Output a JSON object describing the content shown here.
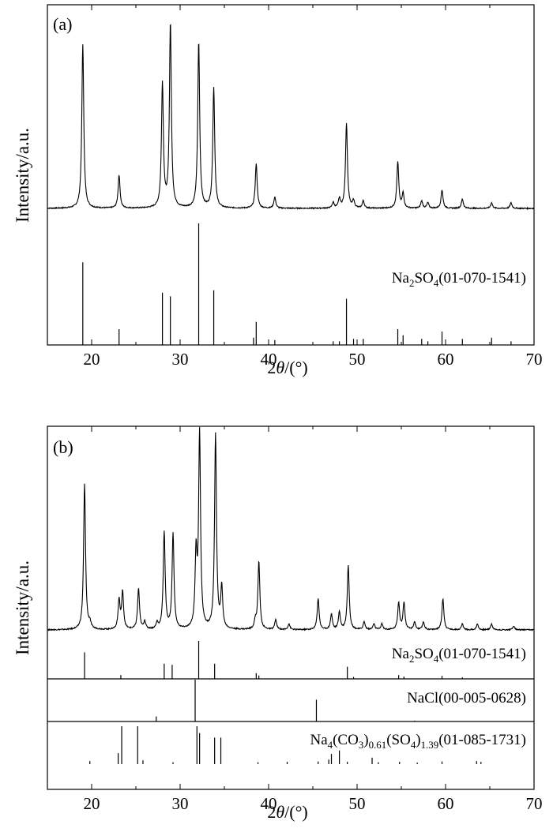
{
  "chart_data": [
    {
      "type": "line",
      "panel_label": "(a)",
      "xlabel_prefix": "2",
      "xlabel_theta": "θ",
      "xlabel_suffix": "/(°)",
      "ylabel": "Intensity/a.u.",
      "xlim": [
        15,
        70
      ],
      "x_ticks": [
        20,
        30,
        40,
        50,
        60,
        70
      ],
      "peaks": [
        {
          "x": 19.0,
          "y": 0.89
        },
        {
          "x": 23.1,
          "y": 0.18
        },
        {
          "x": 28.0,
          "y": 0.67
        },
        {
          "x": 28.9,
          "y": 1.0
        },
        {
          "x": 32.1,
          "y": 0.9
        },
        {
          "x": 33.8,
          "y": 0.65
        },
        {
          "x": 38.6,
          "y": 0.24
        },
        {
          "x": 40.7,
          "y": 0.06
        },
        {
          "x": 47.3,
          "y": 0.03
        },
        {
          "x": 48.0,
          "y": 0.05
        },
        {
          "x": 48.8,
          "y": 0.46
        },
        {
          "x": 49.6,
          "y": 0.04
        },
        {
          "x": 50.7,
          "y": 0.04
        },
        {
          "x": 54.6,
          "y": 0.25
        },
        {
          "x": 55.2,
          "y": 0.08
        },
        {
          "x": 57.3,
          "y": 0.04
        },
        {
          "x": 58.0,
          "y": 0.03
        },
        {
          "x": 59.6,
          "y": 0.1
        },
        {
          "x": 61.9,
          "y": 0.05
        },
        {
          "x": 65.2,
          "y": 0.03
        },
        {
          "x": 67.4,
          "y": 0.03
        }
      ],
      "references": [
        {
          "label_parts": [
            {
              "t": "Na"
            },
            {
              "t": "2",
              "sub": true
            },
            {
              "t": "SO"
            },
            {
              "t": "4",
              "sub": true
            },
            {
              "t": "(01-070-1541)"
            }
          ],
          "sticks": [
            {
              "x": 19.0,
              "y": 0.68
            },
            {
              "x": 23.1,
              "y": 0.13
            },
            {
              "x": 28.0,
              "y": 0.43
            },
            {
              "x": 28.9,
              "y": 0.4
            },
            {
              "x": 32.1,
              "y": 1.0
            },
            {
              "x": 33.8,
              "y": 0.45
            },
            {
              "x": 38.3,
              "y": 0.06
            },
            {
              "x": 38.6,
              "y": 0.19
            },
            {
              "x": 40.7,
              "y": 0.04
            },
            {
              "x": 47.3,
              "y": 0.03
            },
            {
              "x": 48.0,
              "y": 0.03
            },
            {
              "x": 48.8,
              "y": 0.38
            },
            {
              "x": 49.6,
              "y": 0.05
            },
            {
              "x": 50.7,
              "y": 0.05
            },
            {
              "x": 54.6,
              "y": 0.13
            },
            {
              "x": 55.2,
              "y": 0.08
            },
            {
              "x": 57.3,
              "y": 0.05
            },
            {
              "x": 58.0,
              "y": 0.03
            },
            {
              "x": 59.6,
              "y": 0.11
            },
            {
              "x": 61.9,
              "y": 0.05
            },
            {
              "x": 65.2,
              "y": 0.06
            },
            {
              "x": 67.4,
              "y": 0.03
            }
          ]
        }
      ]
    },
    {
      "type": "line",
      "panel_label": "(b)",
      "xlabel_prefix": "2",
      "xlabel_theta": "θ",
      "xlabel_suffix": "/(°)",
      "ylabel": "Intensity/a.u.",
      "xlim": [
        15,
        70
      ],
      "x_ticks": [
        20,
        30,
        40,
        50,
        60,
        70
      ],
      "peaks": [
        {
          "x": 19.2,
          "y": 0.75
        },
        {
          "x": 19.8,
          "y": 0.03
        },
        {
          "x": 23.1,
          "y": 0.15
        },
        {
          "x": 23.5,
          "y": 0.19
        },
        {
          "x": 25.3,
          "y": 0.21
        },
        {
          "x": 26.0,
          "y": 0.04
        },
        {
          "x": 27.4,
          "y": 0.03
        },
        {
          "x": 28.2,
          "y": 0.5
        },
        {
          "x": 29.2,
          "y": 0.49
        },
        {
          "x": 31.8,
          "y": 0.37
        },
        {
          "x": 32.2,
          "y": 1.0
        },
        {
          "x": 34.0,
          "y": 1.0
        },
        {
          "x": 34.7,
          "y": 0.21
        },
        {
          "x": 38.5,
          "y": 0.04
        },
        {
          "x": 38.9,
          "y": 0.35
        },
        {
          "x": 40.8,
          "y": 0.05
        },
        {
          "x": 42.3,
          "y": 0.03
        },
        {
          "x": 45.6,
          "y": 0.16
        },
        {
          "x": 47.1,
          "y": 0.08
        },
        {
          "x": 48.0,
          "y": 0.09
        },
        {
          "x": 49.0,
          "y": 0.33
        },
        {
          "x": 50.8,
          "y": 0.04
        },
        {
          "x": 51.9,
          "y": 0.03
        },
        {
          "x": 52.8,
          "y": 0.03
        },
        {
          "x": 54.7,
          "y": 0.14
        },
        {
          "x": 55.3,
          "y": 0.14
        },
        {
          "x": 56.5,
          "y": 0.04
        },
        {
          "x": 57.5,
          "y": 0.04
        },
        {
          "x": 59.7,
          "y": 0.16
        },
        {
          "x": 61.9,
          "y": 0.03
        },
        {
          "x": 63.6,
          "y": 0.03
        },
        {
          "x": 65.2,
          "y": 0.03
        },
        {
          "x": 67.7,
          "y": 0.02
        }
      ],
      "references": [
        {
          "label_parts": [
            {
              "t": "Na"
            },
            {
              "t": "2",
              "sub": true
            },
            {
              "t": "SO"
            },
            {
              "t": "4",
              "sub": true
            },
            {
              "t": "(01-070-1541)"
            }
          ],
          "sticks": [
            {
              "x": 19.2,
              "y": 0.7
            },
            {
              "x": 23.3,
              "y": 0.1
            },
            {
              "x": 28.2,
              "y": 0.4
            },
            {
              "x": 29.1,
              "y": 0.37
            },
            {
              "x": 32.1,
              "y": 1.0
            },
            {
              "x": 33.9,
              "y": 0.4
            },
            {
              "x": 38.6,
              "y": 0.15
            },
            {
              "x": 38.9,
              "y": 0.09
            },
            {
              "x": 48.9,
              "y": 0.32
            },
            {
              "x": 49.6,
              "y": 0.05
            },
            {
              "x": 54.7,
              "y": 0.1
            },
            {
              "x": 55.3,
              "y": 0.06
            },
            {
              "x": 59.6,
              "y": 0.08
            },
            {
              "x": 61.9,
              "y": 0.04
            }
          ]
        },
        {
          "label_parts": [
            {
              "t": "NaCl(00-005-0628)"
            }
          ],
          "sticks": [
            {
              "x": 27.3,
              "y": 0.12
            },
            {
              "x": 31.7,
              "y": 1.0
            },
            {
              "x": 45.4,
              "y": 0.52
            },
            {
              "x": 56.5,
              "y": 0.02
            }
          ]
        },
        {
          "label_parts": [
            {
              "t": "Na"
            },
            {
              "t": "4",
              "sub": true
            },
            {
              "t": "(CO"
            },
            {
              "t": "3",
              "sub": true
            },
            {
              "t": ")"
            },
            {
              "t": "0.61",
              "sub": true
            },
            {
              "t": "(SO"
            },
            {
              "t": "4",
              "sub": true
            },
            {
              "t": ")"
            },
            {
              "t": "1.39",
              "sub": true
            },
            {
              "t": "(01-085-1731)"
            }
          ],
          "sticks": [
            {
              "x": 19.8,
              "y": 0.08
            },
            {
              "x": 23.0,
              "y": 0.29
            },
            {
              "x": 23.4,
              "y": 1.0
            },
            {
              "x": 25.2,
              "y": 1.0
            },
            {
              "x": 25.8,
              "y": 0.1
            },
            {
              "x": 29.2,
              "y": 0.05
            },
            {
              "x": 31.9,
              "y": 1.0
            },
            {
              "x": 32.2,
              "y": 0.82
            },
            {
              "x": 33.9,
              "y": 0.7
            },
            {
              "x": 34.6,
              "y": 0.7
            },
            {
              "x": 38.8,
              "y": 0.05
            },
            {
              "x": 42.1,
              "y": 0.06
            },
            {
              "x": 45.6,
              "y": 0.07
            },
            {
              "x": 46.8,
              "y": 0.12
            },
            {
              "x": 47.1,
              "y": 0.27
            },
            {
              "x": 48.0,
              "y": 0.36
            },
            {
              "x": 48.9,
              "y": 0.06
            },
            {
              "x": 51.7,
              "y": 0.17
            },
            {
              "x": 52.4,
              "y": 0.05
            },
            {
              "x": 54.8,
              "y": 0.06
            },
            {
              "x": 56.8,
              "y": 0.04
            },
            {
              "x": 59.6,
              "y": 0.07
            },
            {
              "x": 63.5,
              "y": 0.08
            },
            {
              "x": 64.0,
              "y": 0.06
            }
          ]
        }
      ]
    }
  ]
}
